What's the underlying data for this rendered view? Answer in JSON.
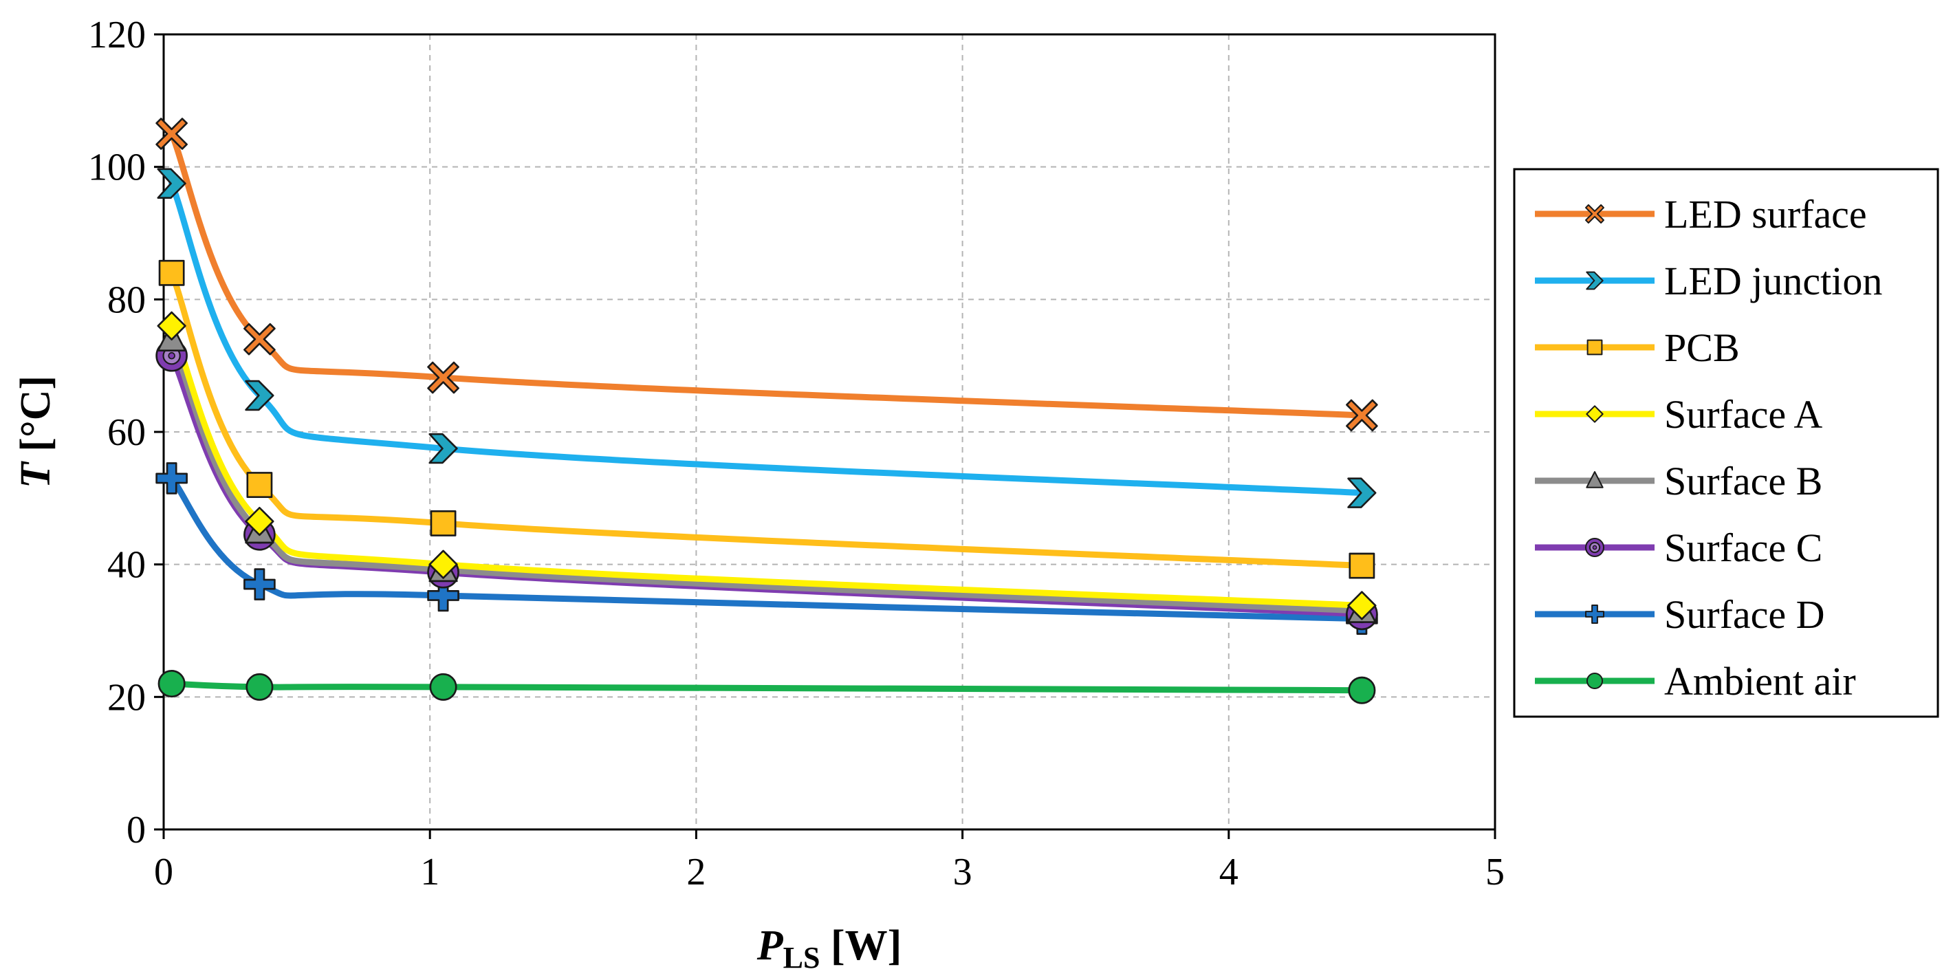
{
  "chart_data": {
    "type": "line",
    "title": "",
    "ylabel": {
      "symbol": "T",
      "unit": " [°C]"
    },
    "xlabel": {
      "symbol": "P",
      "subscript": "LS",
      "unit": " [W]"
    },
    "xlim": [
      0,
      5
    ],
    "ylim": [
      0,
      120
    ],
    "x_ticks": [
      0,
      1,
      2,
      3,
      4,
      5
    ],
    "y_ticks": [
      0,
      20,
      40,
      60,
      80,
      100,
      120
    ],
    "grid": true,
    "legend_position": "right",
    "x": [
      0.03,
      0.36,
      1.05,
      4.5
    ],
    "series": [
      {
        "name": "LED surface",
        "color": "#F07F2D",
        "marker_color": "#F07F2D",
        "marker": "x-cross",
        "values": [
          105,
          74,
          68.2,
          62.5
        ]
      },
      {
        "name": "LED junction",
        "color": "#1FB0EE",
        "marker_color": "#21A5C0",
        "marker": "chevron",
        "values": [
          97.5,
          65.5,
          57.5,
          50.8
        ]
      },
      {
        "name": "PCB",
        "color": "#FFBE1A",
        "marker_color": "#FFBE1A",
        "marker": "square",
        "values": [
          84,
          52,
          46.2,
          39.8
        ]
      },
      {
        "name": "Surface A",
        "color": "#FFF200",
        "marker_color": "#FFF200",
        "marker": "diamond",
        "values": [
          76,
          46.5,
          40,
          33.8
        ]
      },
      {
        "name": "Surface B",
        "color": "#8C8C8C",
        "marker_color": "#8C8C8C",
        "marker": "triangle",
        "values": [
          74,
          45,
          39.2,
          33
        ]
      },
      {
        "name": "Surface C",
        "color": "#7F3CB0",
        "marker_color": "#7F3CB0",
        "marker": "ring",
        "values": [
          71.5,
          44.5,
          38.8,
          32.5
        ]
      },
      {
        "name": "Surface D",
        "color": "#1F74C6",
        "marker_color": "#1F74C6",
        "marker": "plus",
        "values": [
          53,
          37,
          35.3,
          31.8
        ]
      },
      {
        "name": "Ambient air",
        "color": "#18B04E",
        "marker_color": "#18B04E",
        "marker": "circle",
        "values": [
          22,
          21.5,
          21.5,
          21
        ]
      }
    ]
  }
}
